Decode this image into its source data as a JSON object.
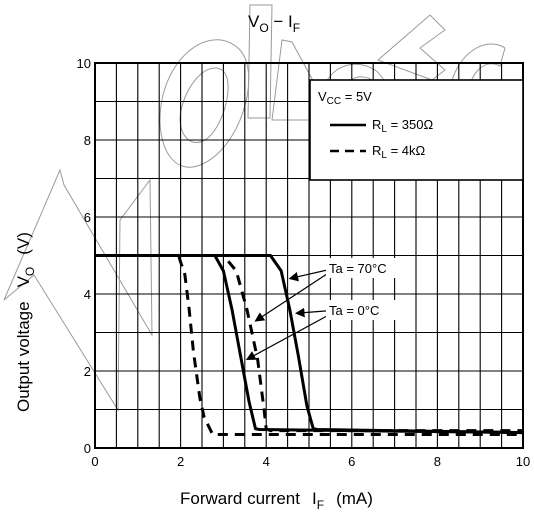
{
  "chart_data": {
    "type": "line",
    "title": {
      "main": "V",
      "sub1": "O",
      "dash": " − I",
      "sub2": "F"
    },
    "xlabel": {
      "text": "Forward current",
      "sym": "I",
      "sub": "F",
      "unit": "(mA)"
    },
    "ylabel": {
      "text": "Output voltage",
      "sym": "V",
      "sub": "O",
      "unit": "(V)"
    },
    "xlim": [
      0,
      10
    ],
    "ylim": [
      0,
      10
    ],
    "x_ticks": [
      0,
      2,
      4,
      6,
      8,
      10
    ],
    "y_ticks": [
      0,
      2,
      4,
      6,
      8,
      10
    ],
    "x_minor_step": 0.5,
    "y_minor_step": 1,
    "grid": true,
    "legend": {
      "placement": "top-right",
      "condition": {
        "sym": "V",
        "sub": "CC",
        "rest": " = 5V"
      },
      "entries": [
        {
          "sym": "R",
          "sub": "L",
          "rest": " = 350Ω",
          "style": "solid"
        },
        {
          "sym": "R",
          "sub": "L",
          "rest": " = 4kΩ",
          "style": "dashed"
        }
      ]
    },
    "annotations": [
      {
        "text": "Ta = 70°C",
        "point_to": [
          [
            4.55,
            4.4
          ],
          [
            3.75,
            3.3
          ]
        ]
      },
      {
        "text": "Ta = 0°C",
        "point_to": [
          [
            4.7,
            3.5
          ],
          [
            3.55,
            2.3
          ]
        ]
      }
    ],
    "series": [
      {
        "style": "solid",
        "x": [
          0,
          2.8,
          3.0,
          3.2,
          3.4,
          3.6,
          3.75,
          3.85,
          10
        ],
        "y": [
          5,
          5,
          4.6,
          3.6,
          2.4,
          1.2,
          0.5,
          0.48,
          0.4
        ]
      },
      {
        "style": "solid",
        "x": [
          0,
          4.1,
          4.35,
          4.55,
          4.75,
          4.95,
          5.1,
          5.2,
          10
        ],
        "y": [
          5,
          5,
          4.6,
          3.6,
          2.4,
          1.1,
          0.5,
          0.48,
          0.4
        ]
      },
      {
        "style": "dashed",
        "x": [
          0,
          1.95,
          2.1,
          2.2,
          2.3,
          2.45,
          2.55,
          2.75,
          10
        ],
        "y": [
          5,
          5,
          4.5,
          3.6,
          2.5,
          1.3,
          0.8,
          0.35,
          0.35
        ]
      },
      {
        "style": "dashed",
        "x": [
          0,
          3.0,
          3.3,
          3.55,
          3.8,
          3.95,
          4.0,
          4.1,
          10
        ],
        "y": [
          5,
          5,
          4.6,
          3.6,
          2.3,
          1.0,
          0.5,
          0.45,
          0.45
        ]
      }
    ],
    "colors": {
      "line": "#000000",
      "grid": "#000000",
      "watermark": "#9a9a9a"
    }
  }
}
